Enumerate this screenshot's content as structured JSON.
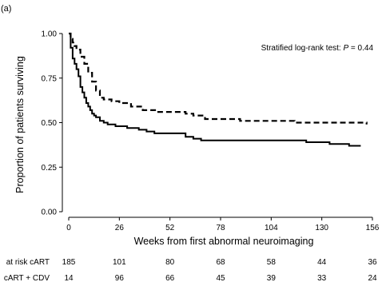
{
  "chart_data": {
    "type": "line",
    "panel_label": "(a)",
    "title": "",
    "xlabel": "Weeks from first abnormal neuroimaging",
    "ylabel": "Proportion of patients surviving",
    "xlim": [
      0,
      156
    ],
    "ylim": [
      0,
      1
    ],
    "xticks": [
      0,
      26,
      52,
      78,
      104,
      130,
      156
    ],
    "yticks": [
      0.0,
      0.25,
      0.5,
      0.75,
      1.0
    ],
    "ytick_labels": [
      "0.00",
      "0.25",
      "0.50",
      "0.75",
      "1.00"
    ],
    "grid": false,
    "annotation": {
      "prefix": "Stratified log-rank test: ",
      "variable": "P",
      "suffix": " = 0.44"
    },
    "series": [
      {
        "key": "cART",
        "style": "solid",
        "points": [
          [
            0,
            1.0
          ],
          [
            1,
            0.92
          ],
          [
            2,
            0.86
          ],
          [
            3,
            0.83
          ],
          [
            4,
            0.8
          ],
          [
            5,
            0.76
          ],
          [
            6,
            0.7
          ],
          [
            7,
            0.67
          ],
          [
            8,
            0.64
          ],
          [
            9,
            0.61
          ],
          [
            10,
            0.59
          ],
          [
            11,
            0.57
          ],
          [
            12,
            0.55
          ],
          [
            13,
            0.54
          ],
          [
            14,
            0.53
          ],
          [
            16,
            0.51
          ],
          [
            18,
            0.5
          ],
          [
            20,
            0.49
          ],
          [
            24,
            0.48
          ],
          [
            30,
            0.47
          ],
          [
            36,
            0.46
          ],
          [
            40,
            0.45
          ],
          [
            44,
            0.44
          ],
          [
            52,
            0.44
          ],
          [
            60,
            0.42
          ],
          [
            64,
            0.41
          ],
          [
            68,
            0.4
          ],
          [
            72,
            0.4
          ],
          [
            80,
            0.4
          ],
          [
            104,
            0.4
          ],
          [
            122,
            0.39
          ],
          [
            130,
            0.39
          ],
          [
            134,
            0.38
          ],
          [
            144,
            0.37
          ],
          [
            150,
            0.37
          ]
        ]
      },
      {
        "key": "cART + CDV",
        "style": "dashed",
        "points": [
          [
            0,
            1.0
          ],
          [
            1,
            0.97
          ],
          [
            2,
            0.95
          ],
          [
            3,
            0.93
          ],
          [
            4,
            0.91
          ],
          [
            6,
            0.87
          ],
          [
            8,
            0.83
          ],
          [
            10,
            0.78
          ],
          [
            12,
            0.73
          ],
          [
            14,
            0.68
          ],
          [
            16,
            0.64
          ],
          [
            18,
            0.63
          ],
          [
            22,
            0.62
          ],
          [
            26,
            0.61
          ],
          [
            32,
            0.59
          ],
          [
            38,
            0.57
          ],
          [
            45,
            0.56
          ],
          [
            52,
            0.56
          ],
          [
            60,
            0.55
          ],
          [
            64,
            0.54
          ],
          [
            70,
            0.52
          ],
          [
            78,
            0.52
          ],
          [
            88,
            0.51
          ],
          [
            104,
            0.51
          ],
          [
            115,
            0.51
          ],
          [
            116,
            0.5
          ],
          [
            130,
            0.5
          ],
          [
            145,
            0.5
          ],
          [
            153,
            0.49
          ]
        ]
      }
    ],
    "at_risk": {
      "x": [
        0,
        26,
        52,
        78,
        104,
        130,
        156
      ],
      "rows": [
        {
          "label": "at risk cART",
          "values": [
            "185",
            "101",
            "80",
            "68",
            "58",
            "44",
            "36"
          ]
        },
        {
          "label": "cART + CDV",
          "values": [
            "14",
            "96",
            "66",
            "45",
            "39",
            "33",
            "24"
          ]
        }
      ]
    }
  }
}
